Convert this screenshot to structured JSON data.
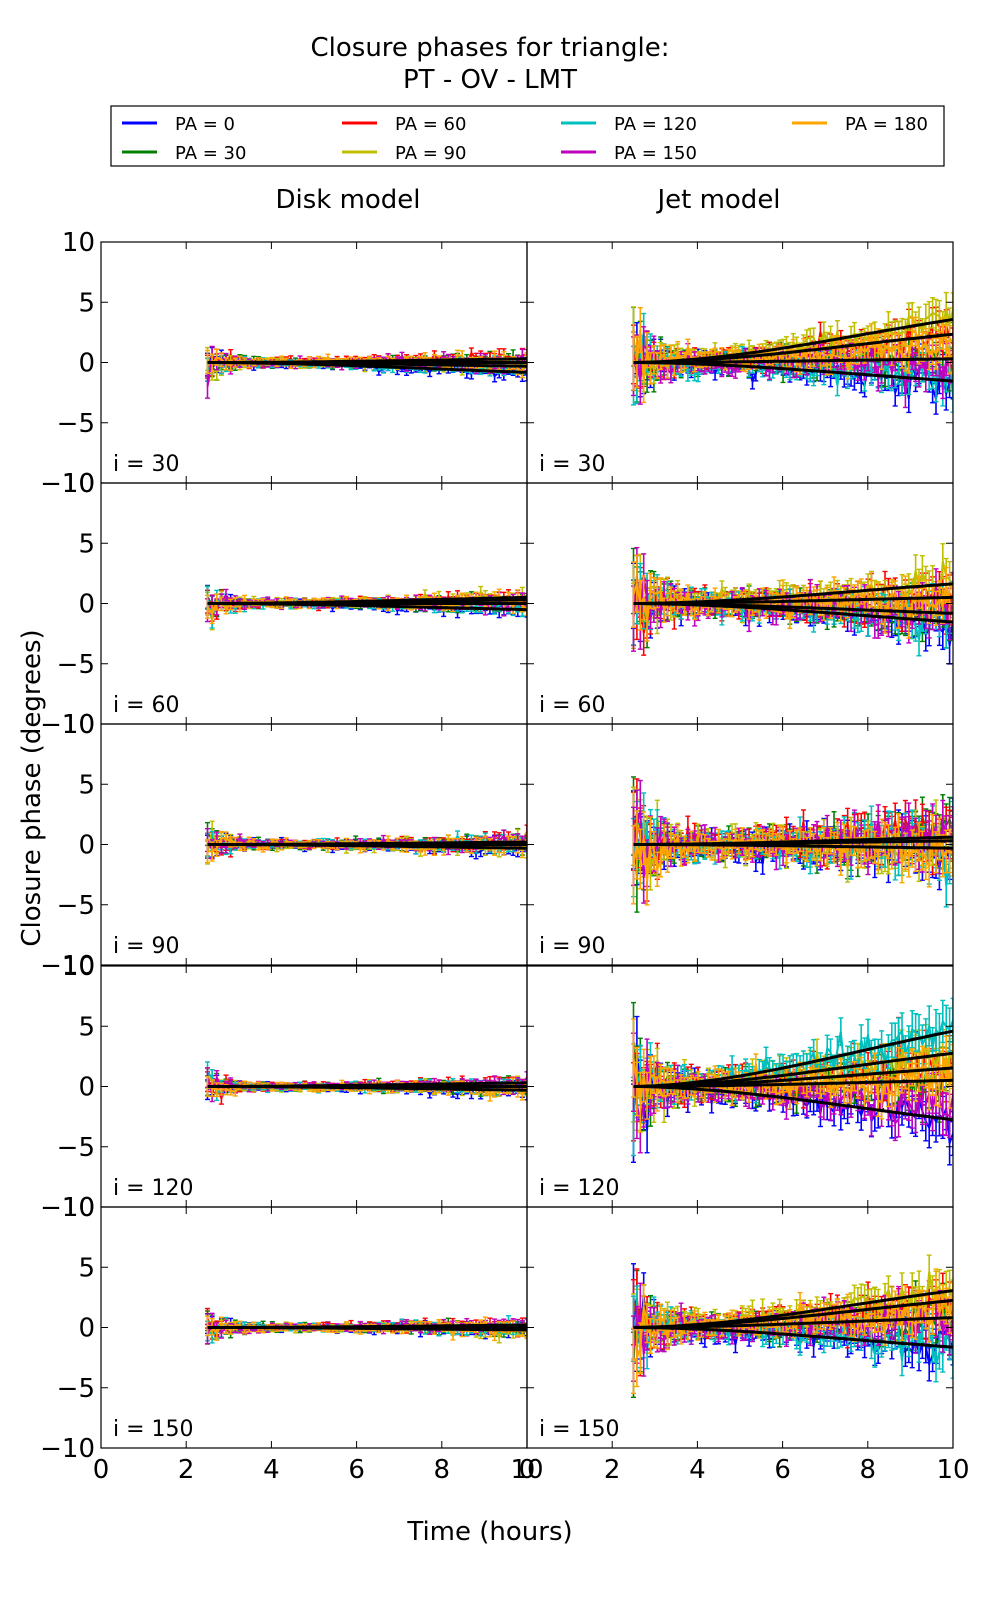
{
  "chart_data": {
    "type": "line",
    "title_line1": "Closure phases for triangle:",
    "title_line2": "PT - OV - LMT",
    "xlabel": "Time (hours)",
    "ylabel": "Closure phase (degrees)",
    "xlim": [
      0,
      10
    ],
    "ylim": [
      -10,
      10
    ],
    "xticks": [
      "0",
      "2",
      "4",
      "6",
      "8",
      "10"
    ],
    "yticks": [
      "10",
      "5",
      "0",
      "−5",
      "−10"
    ],
    "column_titles": [
      "Disk model",
      "Jet model"
    ],
    "row_labels": [
      "i = 30",
      "i = 60",
      "i = 90",
      "i = 120",
      "i = 150"
    ],
    "legend": [
      {
        "label": "PA = 0",
        "color": "#0000ff"
      },
      {
        "label": "PA = 30",
        "color": "#008000"
      },
      {
        "label": "PA = 60",
        "color": "#ff0000"
      },
      {
        "label": "PA = 90",
        "color": "#bfbf00"
      },
      {
        "label": "PA = 120",
        "color": "#00bfbf"
      },
      {
        "label": "PA = 150",
        "color": "#bf00bf"
      },
      {
        "label": "PA = 180",
        "color": "#ffa500"
      }
    ],
    "time_range_hours": [
      2.5,
      10
    ],
    "panels": [
      {
        "model": "Disk model",
        "inclination": "i = 30",
        "noise": 0.35,
        "fit_end_values": [
          -0.8,
          0.0,
          0.3,
          -0.3
        ]
      },
      {
        "model": "Jet model",
        "inclination": "i = 30",
        "noise": 0.9,
        "fit_end_values": [
          -1.5,
          0.3,
          2.3,
          3.5
        ]
      },
      {
        "model": "Disk model",
        "inclination": "i = 60",
        "noise": 0.35,
        "fit_end_values": [
          -0.5,
          0.0,
          0.3,
          0.5
        ]
      },
      {
        "model": "Jet model",
        "inclination": "i = 60",
        "noise": 1.0,
        "fit_end_values": [
          -1.5,
          -0.8,
          0.5,
          1.6
        ]
      },
      {
        "model": "Disk model",
        "inclination": "i = 90",
        "noise": 0.35,
        "fit_end_values": [
          -0.3,
          0.0,
          0.2
        ]
      },
      {
        "model": "Jet model",
        "inclination": "i = 90",
        "noise": 1.2,
        "fit_end_values": [
          -0.3,
          0.3,
          0.6
        ]
      },
      {
        "model": "Disk model",
        "inclination": "i = 120",
        "noise": 0.3,
        "fit_end_values": [
          -0.3,
          0.0,
          0.3
        ]
      },
      {
        "model": "Jet model",
        "inclination": "i = 120",
        "noise": 1.2,
        "fit_end_values": [
          -2.7,
          0.5,
          1.5,
          2.7,
          4.5
        ]
      },
      {
        "model": "Disk model",
        "inclination": "i = 150",
        "noise": 0.3,
        "fit_end_values": [
          -0.2,
          0.0,
          0.2
        ]
      },
      {
        "model": "Jet model",
        "inclination": "i = 150",
        "noise": 1.0,
        "fit_end_values": [
          -1.6,
          0.8,
          2.2,
          3.0
        ]
      }
    ]
  }
}
